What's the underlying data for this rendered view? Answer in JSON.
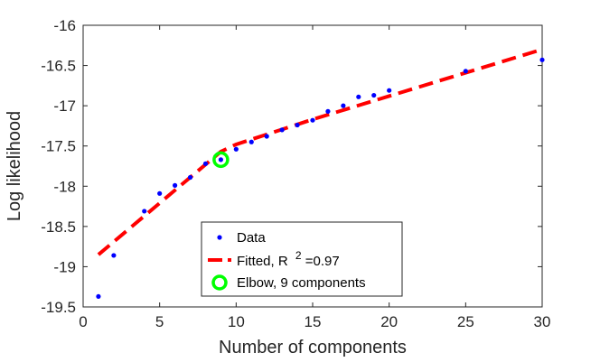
{
  "chart_data": {
    "type": "scatter",
    "title": "",
    "xlabel": "Number of components",
    "ylabel": "Log likelihood",
    "xlim": [
      0,
      30
    ],
    "ylim": [
      -19.5,
      -16
    ],
    "xticks": [
      0,
      5,
      10,
      15,
      20,
      25,
      30
    ],
    "yticks": [
      -16,
      -16.5,
      -17,
      -17.5,
      -18,
      -18.5,
      -19,
      -19.5
    ],
    "xtick_labels": [
      "0",
      "5",
      "10",
      "15",
      "20",
      "25",
      "30"
    ],
    "ytick_labels": [
      "-16",
      "-16.5",
      "-17",
      "-17.5",
      "-18",
      "-18.5",
      "-19",
      "-19.5"
    ],
    "grid": false,
    "legend_position": "bottom-center",
    "series": [
      {
        "name": "Data",
        "kind": "points",
        "color": "#0000ff",
        "points": [
          [
            1,
            -19.37
          ],
          [
            2,
            -18.86
          ],
          [
            4,
            -18.31
          ],
          [
            5,
            -18.09
          ],
          [
            6,
            -17.99
          ],
          [
            7,
            -17.89
          ],
          [
            8,
            -17.72
          ],
          [
            9,
            -17.67
          ],
          [
            10,
            -17.54
          ],
          [
            11,
            -17.45
          ],
          [
            12,
            -17.38
          ],
          [
            13,
            -17.3
          ],
          [
            14,
            -17.24
          ],
          [
            15,
            -17.18
          ],
          [
            16,
            -17.07
          ],
          [
            17,
            -17.0
          ],
          [
            18,
            -16.89
          ],
          [
            19,
            -16.87
          ],
          [
            20,
            -16.81
          ],
          [
            25,
            -16.57
          ],
          [
            30,
            -16.43
          ]
        ]
      },
      {
        "name": "Fitted",
        "kind": "dashed-line",
        "color": "#ff0000",
        "points": [
          [
            1,
            -18.85
          ],
          [
            9,
            -17.57
          ],
          [
            10,
            -17.48
          ],
          [
            15,
            -17.17
          ],
          [
            20,
            -16.88
          ],
          [
            30,
            -16.3
          ]
        ]
      },
      {
        "name": "Elbow, 9 components",
        "kind": "ring-marker",
        "color": "#00ff00",
        "points": [
          [
            9,
            -17.67
          ]
        ]
      }
    ],
    "legend": {
      "data_label": "Data",
      "fitted_prefix": "Fitted, R",
      "fitted_sup": "2",
      "fitted_suffix": "=0.97",
      "elbow_label": "Elbow, 9 components"
    }
  }
}
